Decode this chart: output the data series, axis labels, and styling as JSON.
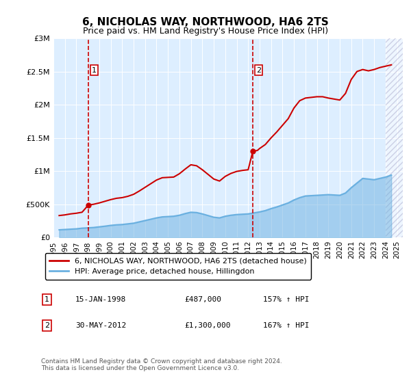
{
  "title": "6, NICHOLAS WAY, NORTHWOOD, HA6 2TS",
  "subtitle": "Price paid vs. HM Land Registry's House Price Index (HPI)",
  "ylabel_ticks": [
    "£0",
    "£500K",
    "£1M",
    "£1.5M",
    "£2M",
    "£2.5M",
    "£3M"
  ],
  "ytick_values": [
    0,
    500000,
    1000000,
    1500000,
    2000000,
    2500000,
    3000000
  ],
  "ylim": [
    0,
    3000000
  ],
  "xlim_start": 1995.0,
  "xlim_end": 2025.5,
  "hpi_color": "#6ab0e0",
  "price_color": "#cc0000",
  "bg_fill": "#ddeeff",
  "hatch_color": "#aaaacc",
  "marker1_date": 1998.04,
  "marker1_price": 487000,
  "marker1_label": "1",
  "marker1_info": "15-JAN-1998    £487,000    157% ↑ HPI",
  "marker2_date": 2012.41,
  "marker2_price": 1300000,
  "marker2_label": "2",
  "marker2_info": "30-MAY-2012    £1,300,000    167% ↑ HPI",
  "legend_line1": "6, NICHOLAS WAY, NORTHWOOD, HA6 2TS (detached house)",
  "legend_line2": "HPI: Average price, detached house, Hillingdon",
  "footnote": "Contains HM Land Registry data © Crown copyright and database right 2024.\nThis data is licensed under the Open Government Licence v3.0.",
  "xtick_years": [
    1995,
    1996,
    1997,
    1998,
    1999,
    2000,
    2001,
    2002,
    2003,
    2004,
    2005,
    2006,
    2007,
    2008,
    2009,
    2010,
    2011,
    2012,
    2013,
    2014,
    2015,
    2016,
    2017,
    2018,
    2019,
    2020,
    2021,
    2022,
    2023,
    2024,
    2025
  ],
  "hpi_data": {
    "years": [
      1995.5,
      1996.0,
      1996.5,
      1997.0,
      1997.5,
      1998.0,
      1998.5,
      1999.0,
      1999.5,
      2000.0,
      2000.5,
      2001.0,
      2001.5,
      2002.0,
      2002.5,
      2003.0,
      2003.5,
      2004.0,
      2004.5,
      2005.0,
      2005.5,
      2006.0,
      2006.5,
      2007.0,
      2007.5,
      2008.0,
      2008.5,
      2009.0,
      2009.5,
      2010.0,
      2010.5,
      2011.0,
      2011.5,
      2012.0,
      2012.5,
      2013.0,
      2013.5,
      2014.0,
      2014.5,
      2015.0,
      2015.5,
      2016.0,
      2016.5,
      2017.0,
      2017.5,
      2018.0,
      2018.5,
      2019.0,
      2019.5,
      2020.0,
      2020.5,
      2021.0,
      2021.5,
      2022.0,
      2022.5,
      2023.0,
      2023.5,
      2024.0,
      2024.5
    ],
    "values": [
      115000,
      120000,
      125000,
      130000,
      140000,
      145000,
      150000,
      160000,
      170000,
      182000,
      190000,
      195000,
      205000,
      215000,
      235000,
      255000,
      275000,
      295000,
      310000,
      315000,
      320000,
      335000,
      360000,
      380000,
      375000,
      355000,
      330000,
      305000,
      295000,
      320000,
      335000,
      345000,
      350000,
      355000,
      370000,
      385000,
      405000,
      435000,
      460000,
      490000,
      520000,
      565000,
      600000,
      625000,
      630000,
      635000,
      640000,
      645000,
      640000,
      635000,
      670000,
      750000,
      820000,
      890000,
      880000,
      870000,
      890000,
      910000,
      940000
    ]
  },
  "price_data": {
    "years": [
      1995.5,
      1996.0,
      1996.5,
      1997.0,
      1997.5,
      1998.04,
      1998.5,
      1999.0,
      1999.5,
      2000.0,
      2000.5,
      2001.0,
      2001.5,
      2002.0,
      2002.5,
      2003.0,
      2003.5,
      2004.0,
      2004.5,
      2005.0,
      2005.5,
      2006.0,
      2006.5,
      2007.0,
      2007.5,
      2008.0,
      2008.5,
      2009.0,
      2009.5,
      2010.0,
      2010.5,
      2011.0,
      2011.5,
      2012.0,
      2012.41,
      2012.8,
      2013.0,
      2013.5,
      2014.0,
      2014.5,
      2015.0,
      2015.5,
      2016.0,
      2016.5,
      2017.0,
      2017.5,
      2018.0,
      2018.5,
      2019.0,
      2019.5,
      2020.0,
      2020.5,
      2021.0,
      2021.5,
      2022.0,
      2022.5,
      2023.0,
      2023.5,
      2024.0,
      2024.5
    ],
    "values": [
      330000,
      340000,
      355000,
      365000,
      380000,
      487000,
      500000,
      520000,
      545000,
      570000,
      590000,
      600000,
      620000,
      650000,
      700000,
      755000,
      810000,
      865000,
      900000,
      905000,
      910000,
      960000,
      1030000,
      1095000,
      1080000,
      1020000,
      950000,
      880000,
      850000,
      920000,
      965000,
      995000,
      1010000,
      1020000,
      1300000,
      1310000,
      1340000,
      1400000,
      1500000,
      1590000,
      1690000,
      1790000,
      1950000,
      2060000,
      2100000,
      2110000,
      2120000,
      2120000,
      2100000,
      2085000,
      2070000,
      2170000,
      2380000,
      2500000,
      2530000,
      2510000,
      2530000,
      2560000,
      2580000,
      2600000
    ]
  }
}
